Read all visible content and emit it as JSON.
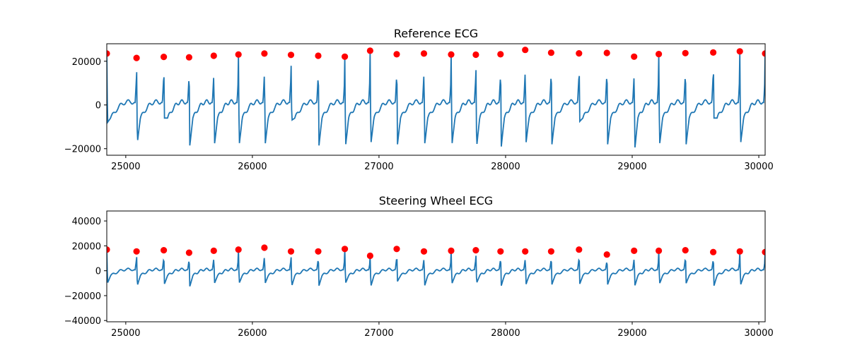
{
  "chart_data": [
    {
      "type": "line",
      "title": "Reference ECG",
      "xlabel": "",
      "ylabel": "",
      "xlim": [
        24850,
        30050
      ],
      "ylim": [
        -23000,
        28000
      ],
      "xticks": [
        25000,
        26000,
        27000,
        28000,
        29000,
        30000
      ],
      "xtick_labels": [
        "25000",
        "26000",
        "27000",
        "28000",
        "29000",
        "30000"
      ],
      "yticks": [
        -20000,
        0,
        20000
      ],
      "ytick_labels": [
        "−20000",
        "0",
        "20000"
      ],
      "grid": false,
      "line_color": "#1f77b4",
      "marker_color": "#ff0000",
      "baseline": {
        "wave_peak": 3500,
        "wave_trough": -6000,
        "t_wave": 2500
      },
      "beats": {
        "x": [
          24850,
          25085,
          25300,
          25500,
          25695,
          25890,
          26095,
          26305,
          26520,
          26730,
          26930,
          27140,
          27355,
          27570,
          27765,
          27960,
          28155,
          28360,
          28580,
          28800,
          29015,
          29210,
          29420,
          29640,
          29850,
          30050
        ],
        "r_peak": [
          23500,
          21500,
          22000,
          21800,
          22500,
          23100,
          23500,
          22900,
          22500,
          22100,
          24800,
          23200,
          23500,
          23100,
          23000,
          23200,
          25200,
          23900,
          23600,
          23800,
          22100,
          23300,
          23700,
          24000,
          24500,
          23500
        ],
        "s_trough": [
          -8000,
          -17500,
          -6000,
          -18500,
          -18000,
          -18500,
          -18000,
          -7000,
          -18500,
          -19000,
          -18000,
          -18000,
          -18000,
          -18500,
          -19500,
          -19000,
          -17500,
          -18000,
          -7500,
          -18000,
          -20000,
          -18500,
          -18000,
          -6000,
          -18000,
          -7000
        ]
      }
    },
    {
      "type": "line",
      "title": "Steering Wheel ECG",
      "xlabel": "",
      "ylabel": "",
      "xlim": [
        24850,
        30050
      ],
      "ylim": [
        -41000,
        48000
      ],
      "xticks": [
        25000,
        26000,
        27000,
        28000,
        29000,
        30000
      ],
      "xtick_labels": [
        "25000",
        "26000",
        "27000",
        "28000",
        "29000",
        "30000"
      ],
      "yticks": [
        -40000,
        -20000,
        0,
        20000,
        40000
      ],
      "ytick_labels": [
        "−40000",
        "−20000",
        "0",
        "20000",
        "40000"
      ],
      "grid": false,
      "line_color": "#1f77b4",
      "marker_color": "#ff0000",
      "baseline": {
        "wave_peak": 2500,
        "wave_trough": -4000,
        "t_wave": 2500
      },
      "beats": {
        "x": [
          24850,
          25085,
          25300,
          25500,
          25695,
          25890,
          26095,
          26305,
          26520,
          26730,
          26930,
          27140,
          27355,
          27570,
          27765,
          27960,
          28155,
          28360,
          28580,
          28800,
          29015,
          29210,
          29420,
          29640,
          29850,
          30050
        ],
        "r_peak": [
          17000,
          15500,
          16500,
          14500,
          16000,
          17000,
          18500,
          15500,
          15500,
          17500,
          12000,
          17500,
          15500,
          16000,
          16500,
          15500,
          15500,
          15500,
          17000,
          13000,
          16000,
          16000,
          16500,
          15000,
          15500,
          15000
        ],
        "s_trough": [
          -10000,
          -12000,
          -10500,
          -12500,
          -10000,
          -10000,
          -10000,
          -12500,
          -12000,
          -10000,
          -12500,
          -8500,
          -12000,
          -10500,
          -10000,
          -12000,
          -11000,
          -11000,
          -10500,
          -11000,
          -12000,
          -10500,
          -10000,
          -12000,
          -11500,
          -6000
        ]
      }
    }
  ]
}
